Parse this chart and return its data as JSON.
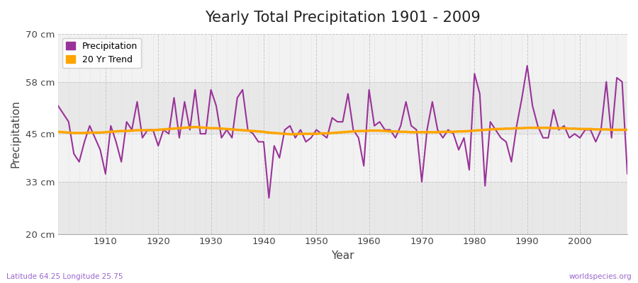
{
  "title": "Yearly Total Precipitation 1901 - 2009",
  "xlabel": "Year",
  "ylabel": "Precipitation",
  "subtitle_left": "Latitude 64.25 Longitude 25.75",
  "subtitle_right": "worldspecies.org",
  "ylim": [
    20,
    70
  ],
  "xlim": [
    1901,
    2009
  ],
  "yticks": [
    20,
    33,
    45,
    58,
    70
  ],
  "ytick_labels": [
    "20 cm",
    "33 cm",
    "45 cm",
    "58 cm",
    "70 cm"
  ],
  "xticks": [
    1910,
    1920,
    1930,
    1940,
    1950,
    1960,
    1970,
    1980,
    1990,
    2000
  ],
  "precip_color": "#993399",
  "trend_color": "#FFA500",
  "bg_color": "#FFFFFF",
  "plot_bg": "#E8E8E8",
  "band_color": "#DCDCDC",
  "grid_color": "#C8C8C8",
  "legend_labels": [
    "Precipitation",
    "20 Yr Trend"
  ],
  "years": [
    1901,
    1902,
    1903,
    1904,
    1905,
    1906,
    1907,
    1908,
    1909,
    1910,
    1911,
    1912,
    1913,
    1914,
    1915,
    1916,
    1917,
    1918,
    1919,
    1920,
    1921,
    1922,
    1923,
    1924,
    1925,
    1926,
    1927,
    1928,
    1929,
    1930,
    1931,
    1932,
    1933,
    1934,
    1935,
    1936,
    1937,
    1938,
    1939,
    1940,
    1941,
    1942,
    1943,
    1944,
    1945,
    1946,
    1947,
    1948,
    1949,
    1950,
    1951,
    1952,
    1953,
    1954,
    1955,
    1956,
    1957,
    1958,
    1959,
    1960,
    1961,
    1962,
    1963,
    1964,
    1965,
    1966,
    1967,
    1968,
    1969,
    1970,
    1971,
    1972,
    1973,
    1974,
    1975,
    1976,
    1977,
    1978,
    1979,
    1980,
    1981,
    1982,
    1983,
    1984,
    1985,
    1986,
    1987,
    1988,
    1989,
    1990,
    1991,
    1992,
    1993,
    1994,
    1995,
    1996,
    1997,
    1998,
    1999,
    2000,
    2001,
    2002,
    2003,
    2004,
    2005,
    2006,
    2007,
    2008,
    2009
  ],
  "precip": [
    52,
    50,
    48,
    40,
    38,
    43,
    47,
    44,
    41,
    35,
    47,
    43,
    38,
    48,
    46,
    53,
    44,
    46,
    46,
    42,
    46,
    45,
    54,
    44,
    53,
    46,
    56,
    45,
    45,
    56,
    52,
    44,
    46,
    44,
    54,
    56,
    46,
    45,
    43,
    43,
    29,
    42,
    39,
    46,
    47,
    44,
    46,
    43,
    44,
    46,
    45,
    44,
    49,
    48,
    48,
    55,
    46,
    44,
    37,
    56,
    47,
    48,
    46,
    46,
    44,
    47,
    53,
    47,
    46,
    33,
    46,
    53,
    46,
    44,
    46,
    45,
    41,
    44,
    36,
    60,
    55,
    32,
    48,
    46,
    44,
    43,
    38,
    47,
    54,
    62,
    52,
    47,
    44,
    44,
    51,
    46,
    47,
    44,
    45,
    44,
    46,
    46,
    43,
    46,
    58,
    44,
    59,
    58,
    35
  ],
  "trend": [
    45.5,
    45.4,
    45.3,
    45.2,
    45.2,
    45.2,
    45.3,
    45.3,
    45.3,
    45.4,
    45.5,
    45.6,
    45.7,
    45.7,
    45.8,
    45.9,
    45.9,
    45.9,
    45.9,
    46.0,
    46.1,
    46.2,
    46.3,
    46.4,
    46.5,
    46.6,
    46.7,
    46.6,
    46.5,
    46.4,
    46.4,
    46.3,
    46.2,
    46.1,
    46.0,
    45.9,
    45.8,
    45.7,
    45.6,
    45.5,
    45.3,
    45.2,
    45.1,
    45.0,
    44.9,
    44.9,
    45.0,
    45.0,
    45.0,
    45.0,
    45.1,
    45.1,
    45.2,
    45.3,
    45.4,
    45.5,
    45.6,
    45.7,
    45.7,
    45.8,
    45.8,
    45.8,
    45.7,
    45.6,
    45.6,
    45.5,
    45.5,
    45.4,
    45.4,
    45.4,
    45.4,
    45.4,
    45.4,
    45.5,
    45.5,
    45.5,
    45.6,
    45.6,
    45.7,
    45.8,
    45.9,
    46.0,
    46.1,
    46.2,
    46.2,
    46.3,
    46.3,
    46.4,
    46.4,
    46.5,
    46.5,
    46.5,
    46.5,
    46.5,
    46.4,
    46.4,
    46.4,
    46.3,
    46.3,
    46.2,
    46.2,
    46.2,
    46.1,
    46.1,
    46.1,
    46.0,
    46.0,
    46.0,
    46.0
  ]
}
